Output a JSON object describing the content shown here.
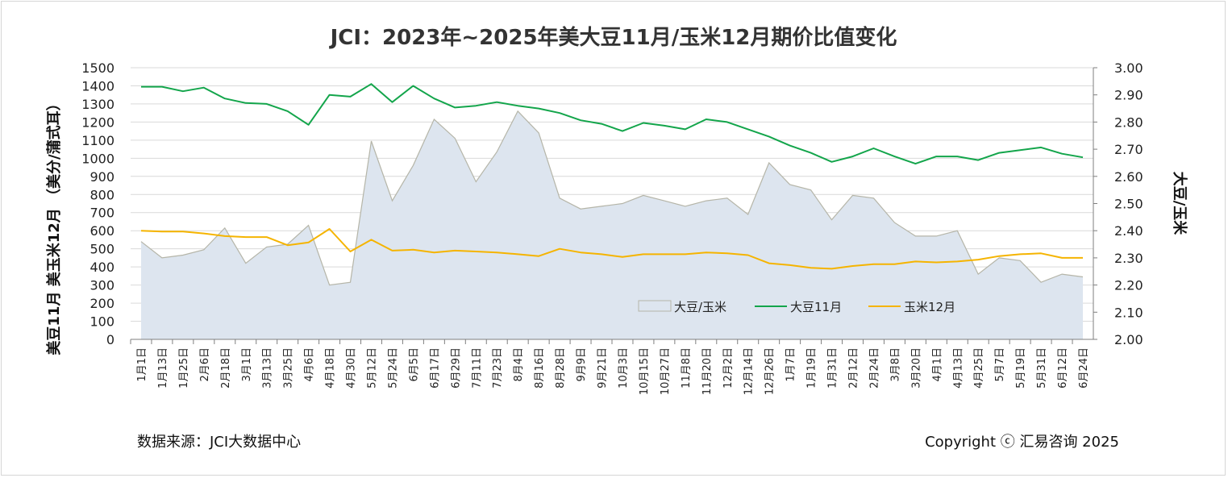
{
  "chart_data": {
    "type": "line",
    "title": "JCI：2023年~2025年美大豆11月/玉米12月期价比值变化",
    "ylabel_left": "美豆11月  美玉米12月   （美分/蒲式耳）",
    "ylabel_right": "大豆/玉米",
    "ylim_left": [
      0,
      1500
    ],
    "ylim_right": [
      2.0,
      3.0
    ],
    "yticks_left": [
      "0",
      "100",
      "200",
      "300",
      "400",
      "500",
      "600",
      "700",
      "800",
      "900",
      "1000",
      "1100",
      "1200",
      "1300",
      "1400",
      "1500"
    ],
    "yticks_right": [
      "2.00",
      "2.10",
      "2.20",
      "2.30",
      "2.40",
      "2.50",
      "2.60",
      "2.70",
      "2.80",
      "2.90",
      "3.00"
    ],
    "grid": "horizontal",
    "legend_position": "inside-bottom-right",
    "x": [
      "1月1日",
      "1月13日",
      "1月25日",
      "2月6日",
      "2月18日",
      "3月1日",
      "3月13日",
      "3月25日",
      "4月6日",
      "4月18日",
      "4月30日",
      "5月12日",
      "5月24日",
      "6月5日",
      "6月17日",
      "6月29日",
      "7月11日",
      "7月23日",
      "8月4日",
      "8月16日",
      "8月28日",
      "9月9日",
      "9月21日",
      "10月3日",
      "10月15日",
      "10月27日",
      "11月8日",
      "11月20日",
      "12月2日",
      "12月14日",
      "12月26日",
      "1月7日",
      "1月19日",
      "1月31日",
      "2月12日",
      "2月24日",
      "3月8日",
      "3月20日",
      "4月1日",
      "4月13日",
      "4月25日",
      "5月7日",
      "5月19日",
      "5月31日",
      "6月12日",
      "6月24日"
    ],
    "series": [
      {
        "name": "大豆/玉米",
        "axis": "right",
        "style": "area",
        "color": "#dde5ef",
        "edge_color": "#b5b5a8",
        "values": [
          2.36,
          2.3,
          2.31,
          2.33,
          2.41,
          2.28,
          2.34,
          2.35,
          2.42,
          2.2,
          2.21,
          2.73,
          2.51,
          2.64,
          2.81,
          2.74,
          2.58,
          2.69,
          2.84,
          2.76,
          2.52,
          2.48,
          2.49,
          2.5,
          2.53,
          2.51,
          2.49,
          2.51,
          2.52,
          2.46,
          2.65,
          2.57,
          2.55,
          2.44,
          2.53,
          2.52,
          2.43,
          2.38,
          2.38,
          2.4,
          2.24,
          2.3,
          2.29,
          2.21,
          2.24,
          2.23
        ]
      },
      {
        "name": "大豆11月",
        "axis": "left",
        "style": "line",
        "color": "#13a54b",
        "values": [
          1395,
          1395,
          1370,
          1390,
          1330,
          1305,
          1300,
          1260,
          1185,
          1350,
          1340,
          1410,
          1310,
          1400,
          1330,
          1280,
          1290,
          1310,
          1290,
          1275,
          1250,
          1210,
          1190,
          1150,
          1195,
          1180,
          1160,
          1215,
          1200,
          1160,
          1120,
          1070,
          1030,
          980,
          1010,
          1055,
          1010,
          970,
          1010,
          1010,
          990,
          1030,
          1045,
          1060,
          1025,
          1005
        ]
      },
      {
        "name": "玉米12月",
        "axis": "left",
        "style": "line",
        "color": "#f5b400",
        "values": [
          600,
          595,
          595,
          585,
          570,
          565,
          565,
          520,
          535,
          610,
          485,
          550,
          490,
          495,
          480,
          490,
          485,
          480,
          470,
          460,
          500,
          480,
          470,
          455,
          470,
          470,
          470,
          480,
          475,
          465,
          420,
          410,
          395,
          390,
          405,
          415,
          415,
          430,
          425,
          430,
          440,
          460,
          470,
          475,
          450,
          450
        ]
      }
    ]
  },
  "footer": {
    "source": "数据来源：JCI大数据中心",
    "copyright": "Copyright ⓒ 汇易咨询 2025"
  }
}
